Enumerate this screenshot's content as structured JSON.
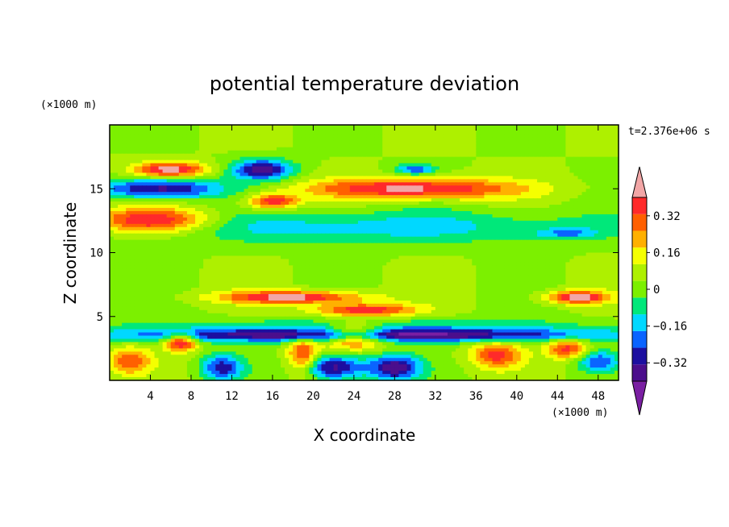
{
  "chart_data": {
    "type": "heatmap",
    "title": "potential temperature deviation",
    "xlabel": "X coordinate",
    "ylabel": "Z coordinate",
    "x_unit": "(×1000 m)",
    "y_unit": "(×1000 m)",
    "time_label": "t=2.376e+06 s",
    "xlim": [
      0,
      50
    ],
    "ylim": [
      0,
      20
    ],
    "x_ticks": [
      4,
      8,
      12,
      16,
      20,
      24,
      28,
      32,
      36,
      40,
      44,
      48
    ],
    "y_ticks": [
      5,
      10,
      15
    ],
    "colorbar": {
      "levels": [
        -0.48,
        -0.4,
        -0.32,
        -0.24,
        -0.16,
        -0.08,
        0,
        0.08,
        0.16,
        0.24,
        0.32,
        0.4,
        0.48
      ],
      "tick_labels": [
        "0.32",
        "0.16",
        "0",
        "−0.16",
        "−0.32"
      ],
      "tick_values": [
        0.32,
        0.16,
        0,
        -0.16,
        -0.32
      ],
      "colors_low_to_high": [
        "#7a1fa2",
        "#4b0e8c",
        "#1c0fa0",
        "#0a64ff",
        "#00d8ff",
        "#00e87a",
        "#7cf000",
        "#aef000",
        "#f5ff00",
        "#ffb000",
        "#ff6000",
        "#ff2a2a",
        "#f2a6a6"
      ],
      "extends": "both"
    },
    "features": [
      {
        "x": 6,
        "z": 16.5,
        "value": 0.45,
        "wx": 3.5,
        "wz": 0.6
      },
      {
        "x": 15,
        "z": 16.5,
        "value": -0.45,
        "wx": 3.0,
        "wz": 0.8
      },
      {
        "x": 5,
        "z": 15,
        "value": -0.45,
        "wx": 6.0,
        "wz": 0.8
      },
      {
        "x": 16,
        "z": 14,
        "value": 0.4,
        "wx": 2.5,
        "wz": 0.6
      },
      {
        "x": 30,
        "z": 15,
        "value": 0.45,
        "wx": 10,
        "wz": 0.8
      },
      {
        "x": 30,
        "z": 16.5,
        "value": -0.3,
        "wx": 2.0,
        "wz": 0.4
      },
      {
        "x": 4,
        "z": 12.5,
        "value": 0.45,
        "wx": 6.0,
        "wz": 1.0
      },
      {
        "x": 25,
        "z": 12,
        "value": -0.2,
        "wx": 25,
        "wz": 1.3
      },
      {
        "x": 45,
        "z": 11.5,
        "value": -0.2,
        "wx": 3.0,
        "wz": 0.4
      },
      {
        "x": 18,
        "z": 6.5,
        "value": 0.45,
        "wx": 7.0,
        "wz": 0.5
      },
      {
        "x": 46,
        "z": 6.5,
        "value": 0.45,
        "wx": 3.0,
        "wz": 0.5
      },
      {
        "x": 25,
        "z": 5.5,
        "value": 0.4,
        "wx": 5.0,
        "wz": 0.5
      },
      {
        "x": 25,
        "z": 4.0,
        "value": -0.2,
        "wx": 25,
        "wz": 0.8
      },
      {
        "x": 25,
        "z": 3.5,
        "value": -0.4,
        "wx": 25,
        "wz": 0.5
      },
      {
        "x": 7,
        "z": 3.0,
        "value": 0.45,
        "wx": 1.5,
        "wz": 0.7
      },
      {
        "x": 24,
        "z": 3.5,
        "value": 0.45,
        "wx": 3.0,
        "wz": 1.0
      },
      {
        "x": 22,
        "z": 1.0,
        "value": -0.45,
        "wx": 3.0,
        "wz": 1.0
      },
      {
        "x": 28,
        "z": 1.0,
        "value": -0.45,
        "wx": 2.5,
        "wz": 1.0
      },
      {
        "x": 38,
        "z": 2.0,
        "value": 0.35,
        "wx": 2.5,
        "wz": 1.0
      },
      {
        "x": 2,
        "z": 1.5,
        "value": 0.3,
        "wx": 2.0,
        "wz": 1.0
      },
      {
        "x": 19,
        "z": 2.0,
        "value": 0.35,
        "wx": 1.5,
        "wz": 1.5
      },
      {
        "x": 11,
        "z": 1.0,
        "value": -0.35,
        "wx": 2.0,
        "wz": 1.0
      },
      {
        "x": 45,
        "z": 2.5,
        "value": 0.35,
        "wx": 2.0,
        "wz": 0.8
      },
      {
        "x": 48,
        "z": 1.5,
        "value": -0.3,
        "wx": 2.0,
        "wz": 0.8
      }
    ]
  }
}
